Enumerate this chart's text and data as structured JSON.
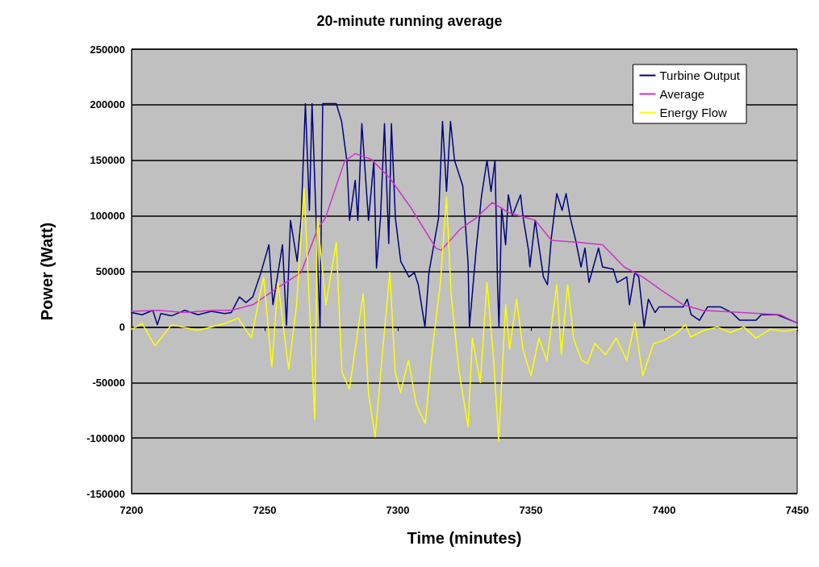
{
  "chart_data": {
    "type": "line",
    "title": "20-minute running average",
    "xlabel": "Time (minutes)",
    "ylabel": "Power (Watt)",
    "xlim": [
      7200,
      7450
    ],
    "xticks": [
      7200,
      7250,
      7300,
      7350,
      7400,
      7450
    ],
    "ylim": [
      -150000,
      250000
    ],
    "yticks": [
      -150000,
      -100000,
      -50000,
      0,
      50000,
      100000,
      150000,
      200000,
      250000
    ],
    "grid": "y",
    "legend": "top right",
    "marker": "none",
    "line_style": "solid",
    "series": [
      {
        "name": "Turbine Output",
        "color": "#000080",
        "x": [
          7200,
          7204,
          7208,
          7209.7,
          7211,
          7215,
          7220,
          7225,
          7230,
          7235,
          7237.5,
          7240.5,
          7243,
          7245.5,
          7248.6,
          7251.6,
          7253.1,
          7256.7,
          7258.2,
          7259.7,
          7262.2,
          7263.7,
          7265.3,
          7266.8,
          7267.8,
          7269.3,
          7270.8,
          7271.8,
          7276.9,
          7278.9,
          7280.9,
          7281.9,
          7284,
          7285,
          7286.5,
          7289,
          7291,
          7292,
          7293.5,
          7295,
          7296.6,
          7297.6,
          7299.1,
          7301.1,
          7304.2,
          7306.2,
          7307.7,
          7310.2,
          7311.7,
          7315.3,
          7316.8,
          7318.3,
          7319.8,
          7321.3,
          7324.4,
          7326.4,
          7326.9,
          7329.4,
          7331.4,
          7333.5,
          7335,
          7336.5,
          7337.5,
          7338,
          7339,
          7340.5,
          7341.5,
          7343,
          7346.1,
          7347.1,
          7349.1,
          7349.6,
          7351.6,
          7354.7,
          7356.2,
          7357.7,
          7359.7,
          7361.7,
          7363.2,
          7364.8,
          7366.8,
          7368.8,
          7370.3,
          7371.8,
          7375.4,
          7376.9,
          7380.9,
          7382.4,
          7386,
          7387,
          7389,
          7390.5,
          7392.5,
          7394.1,
          7396.6,
          7398.1,
          7407.2,
          7408.7,
          7410.2,
          7413.3,
          7416.3,
          7421.3,
          7425.4,
          7428.4,
          7434.5,
          7436.5,
          7442.5,
          7450
        ],
        "values": [
          13000,
          11000,
          15000,
          2000,
          12000,
          10000,
          15000,
          11000,
          14000,
          12000,
          13000,
          27000,
          22000,
          27000,
          49000,
          74000,
          20000,
          74000,
          1500,
          96000,
          59000,
          98000,
          201000,
          105000,
          201000,
          98000,
          0,
          201000,
          201000,
          185000,
          149000,
          96000,
          132000,
          96000,
          183000,
          96000,
          149000,
          53000,
          98000,
          183000,
          75000,
          183000,
          98000,
          59000,
          45000,
          49000,
          38000,
          0,
          49000,
          98000,
          185000,
          122000,
          185000,
          150000,
          127000,
          57000,
          0,
          69000,
          117000,
          150000,
          122000,
          150000,
          35000,
          0,
          107000,
          74000,
          119000,
          100000,
          119000,
          98000,
          69000,
          54000,
          96000,
          45000,
          38000,
          81000,
          120000,
          105000,
          120000,
          98000,
          78000,
          54000,
          71000,
          40000,
          71000,
          54000,
          52000,
          40000,
          45000,
          20000,
          49000,
          45000,
          0,
          25000,
          13000,
          18000,
          18000,
          25000,
          11000,
          6000,
          18000,
          18000,
          13000,
          6000,
          6000,
          11000,
          11000,
          3600
        ]
      },
      {
        "name": "Average",
        "color": "#cc33cc",
        "x": [
          7200,
          7210,
          7220,
          7230,
          7237.5,
          7245.6,
          7254.7,
          7263.7,
          7269.8,
          7272.8,
          7280,
          7284,
          7290,
          7297,
          7305,
          7314.3,
          7316.3,
          7323.4,
          7329.4,
          7335.5,
          7341.5,
          7351.6,
          7357.7,
          7368.8,
          7376.9,
          7385,
          7392,
          7399,
          7407.2,
          7414.3,
          7429.4,
          7443.6,
          7450
        ],
        "values": [
          14000,
          15000,
          13000,
          15000,
          15000,
          20000,
          35000,
          49000,
          88000,
          98000,
          149000,
          156000,
          151000,
          134000,
          107000,
          71000,
          69000,
          88000,
          98000,
          112000,
          103000,
          96000,
          78000,
          76000,
          74000,
          54000,
          45000,
          33000,
          20000,
          15000,
          13000,
          11000,
          3600
        ]
      },
      {
        "name": "Energy Flow",
        "color": "#ffff00",
        "x": [
          7200,
          7204,
          7208.8,
          7215,
          7225,
          7235,
          7240,
          7245,
          7249.6,
          7252.7,
          7255,
          7259,
          7262,
          7264.8,
          7268.8,
          7269.8,
          7273,
          7276.9,
          7279,
          7281.8,
          7284,
          7287,
          7289,
          7291.5,
          7294,
          7297,
          7299,
          7301,
          7304,
          7307,
          7310.3,
          7313,
          7316,
          7318.3,
          7320,
          7323,
          7326.4,
          7328,
          7331,
          7333.5,
          7336,
          7337.9,
          7340.5,
          7342,
          7344.6,
          7347,
          7350,
          7353,
          7356,
          7359.7,
          7361.4,
          7363.8,
          7366,
          7369,
          7371.2,
          7374,
          7378,
          7382,
          7386,
          7389,
          7392,
          7396,
          7400,
          7405,
          7408,
          7410,
          7415,
          7420,
          7425,
          7430,
          7434.5,
          7440,
          7445,
          7450
        ],
        "values": [
          -2000,
          3000,
          -17000,
          2000,
          -3000,
          3000,
          8000,
          -10000,
          45000,
          -36000,
          40000,
          -38000,
          20000,
          125000,
          -83000,
          98000,
          20000,
          76000,
          -40000,
          -56000,
          -20000,
          30000,
          -60000,
          -99000,
          -30000,
          49000,
          -40000,
          -59000,
          -30000,
          -70000,
          -87000,
          -20000,
          40000,
          117000,
          30000,
          -40000,
          -90000,
          -10000,
          -50000,
          40000,
          -30000,
          -102000,
          20000,
          -20000,
          25000,
          -20000,
          -44000,
          -10000,
          -30000,
          38000,
          -25000,
          38000,
          -10000,
          -30000,
          -33000,
          -15000,
          -25000,
          -10000,
          -30000,
          4000,
          -44000,
          -15000,
          -12000,
          -5000,
          2000,
          -9000,
          -3000,
          0,
          -5000,
          0,
          -10000,
          -2000,
          -4000,
          -2000
        ]
      }
    ]
  }
}
